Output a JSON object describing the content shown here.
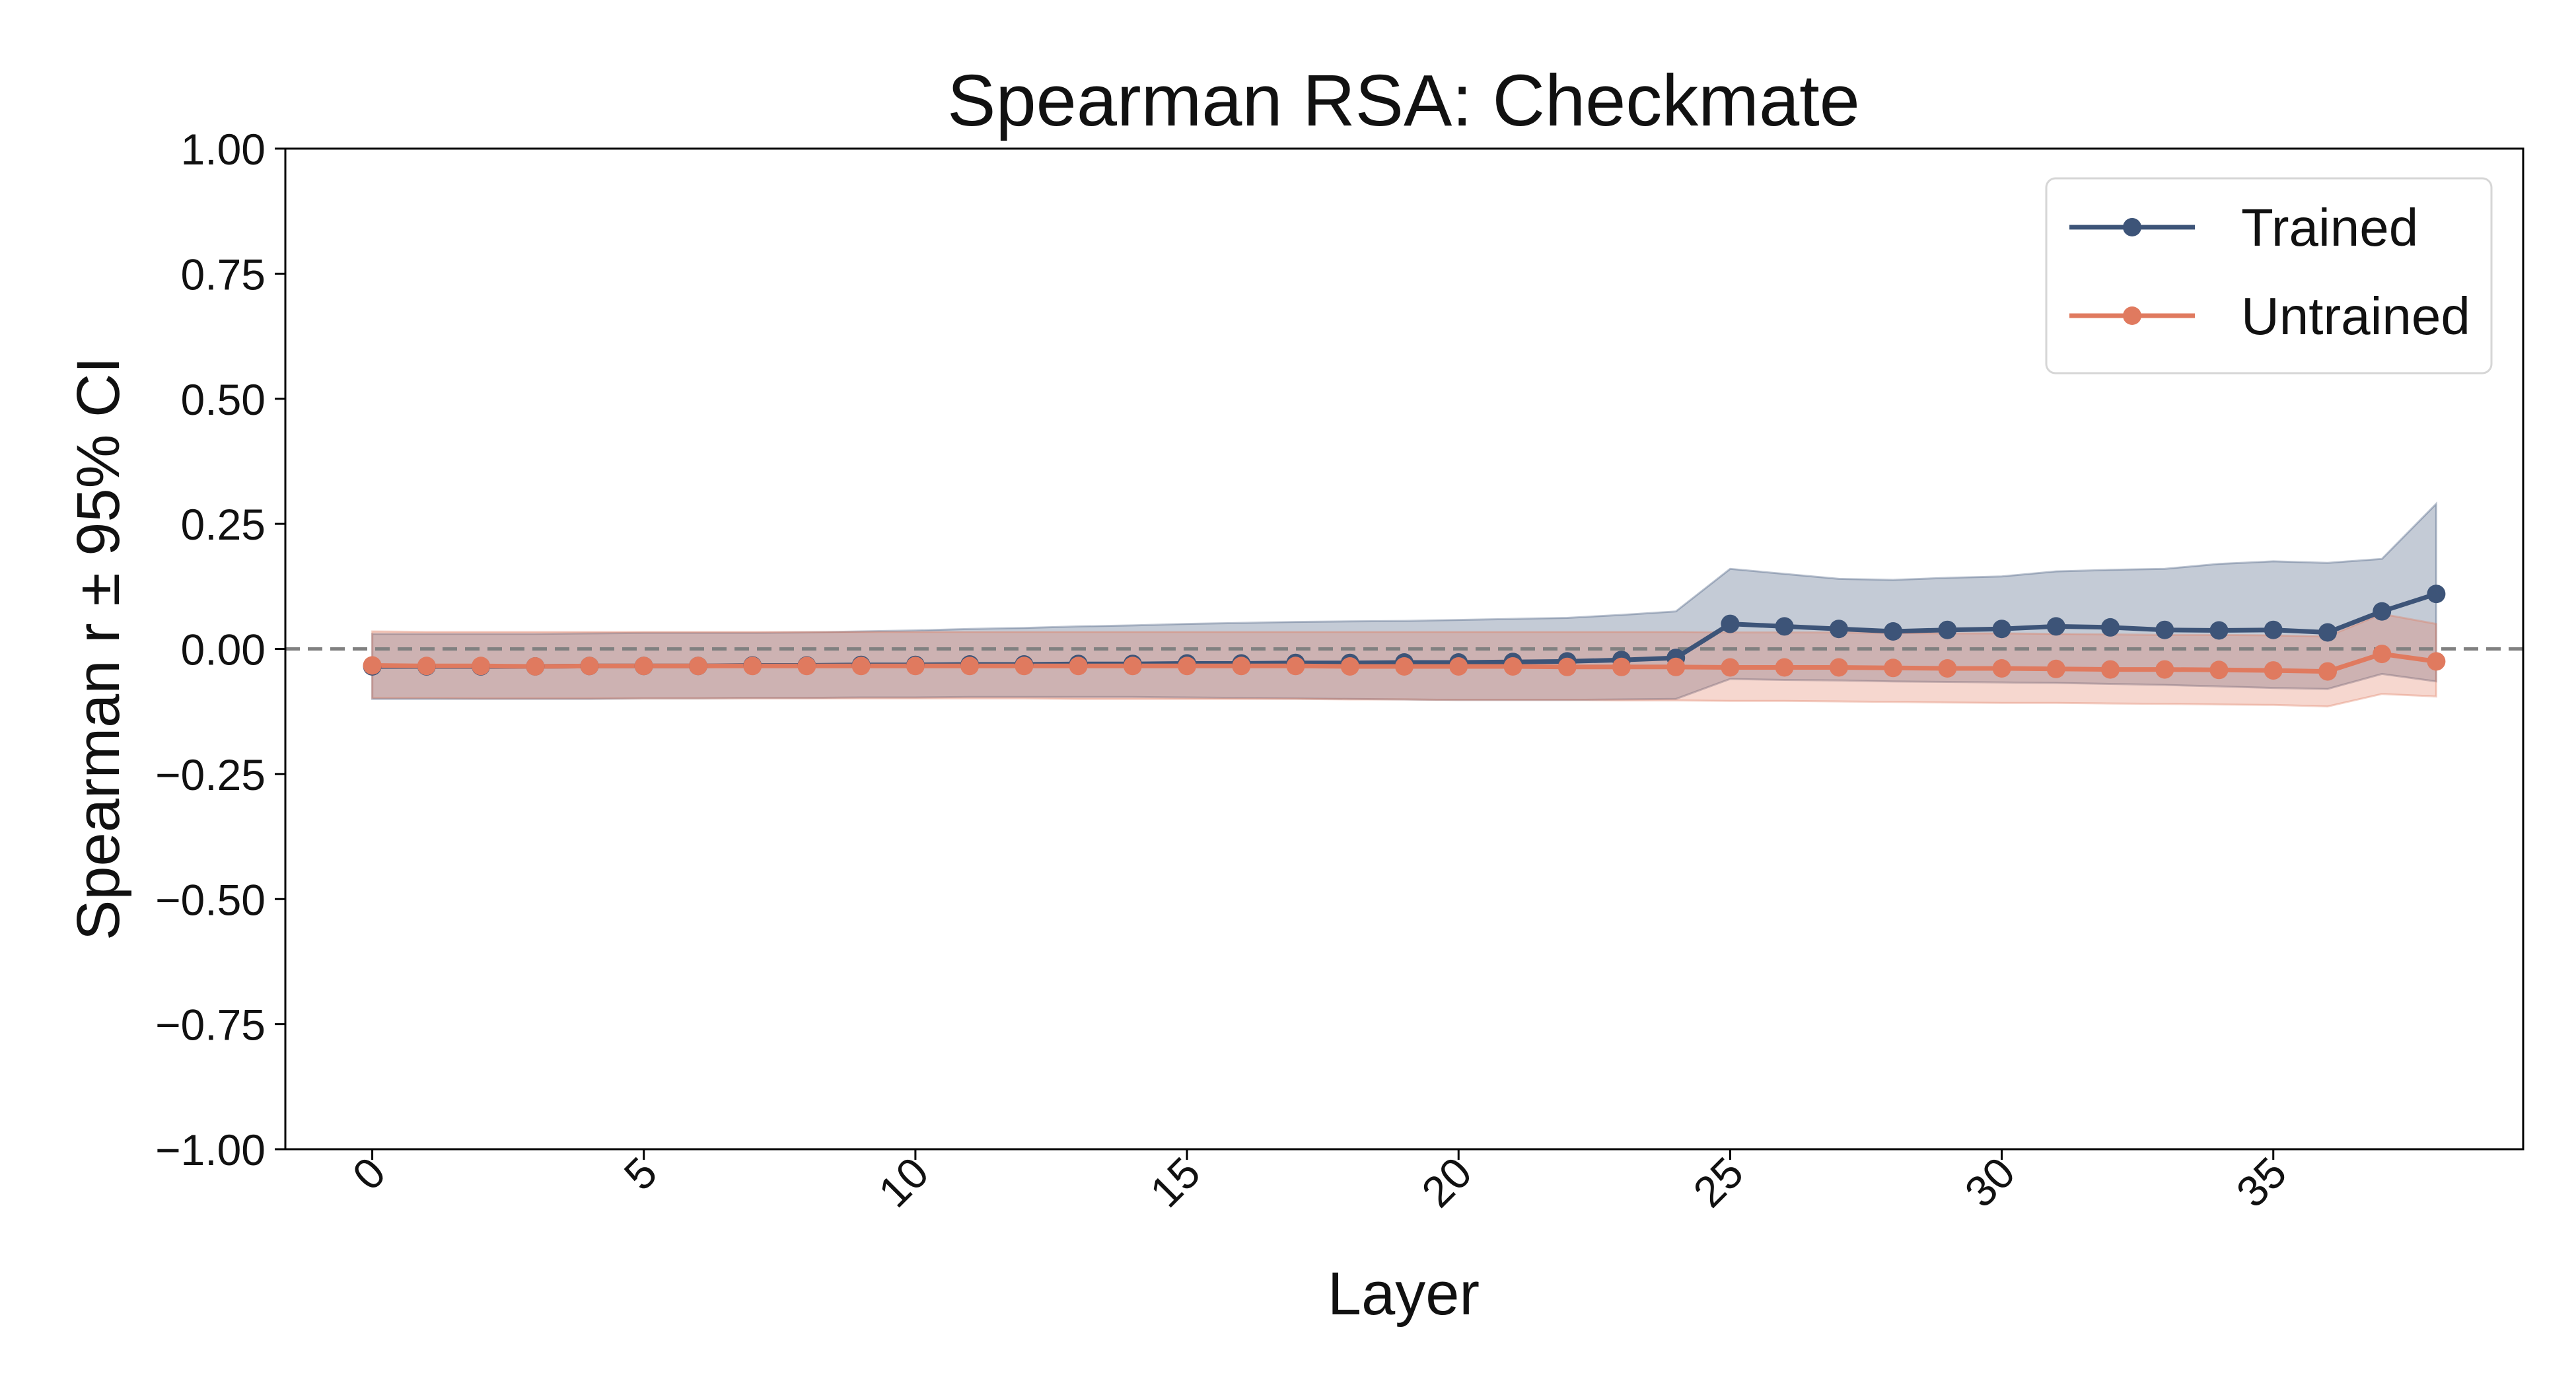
{
  "chart_data": {
    "type": "line",
    "title": "Spearman RSA: Checkmate",
    "xlabel": "Layer",
    "ylabel": "Spearman r ± 95% CI",
    "xlim": [
      -1.6,
      39.6
    ],
    "ylim": [
      -1.0,
      1.0
    ],
    "x_ticks": [
      0,
      5,
      10,
      15,
      20,
      25,
      30,
      35
    ],
    "y_ticks": [
      1.0,
      0.75,
      0.5,
      0.25,
      0.0,
      -0.25,
      -0.5,
      -0.75,
      -1.0
    ],
    "x_tick_labels": [
      "0",
      "5",
      "10",
      "15",
      "20",
      "25",
      "30",
      "35"
    ],
    "y_tick_labels": [
      "1.00",
      "0.75",
      "0.50",
      "0.25",
      "0.00",
      "−0.25",
      "−0.50",
      "−0.75",
      "−1.00"
    ],
    "reference_line": 0.0,
    "grid": false,
    "legend_position": "top-right",
    "x": [
      0,
      1,
      2,
      3,
      4,
      5,
      6,
      7,
      8,
      9,
      10,
      11,
      12,
      13,
      14,
      15,
      16,
      17,
      18,
      19,
      20,
      21,
      22,
      23,
      24,
      25,
      26,
      27,
      28,
      29,
      30,
      31,
      32,
      33,
      34,
      35,
      36,
      37,
      38
    ],
    "series": [
      {
        "name": "Trained",
        "color": "#3d5478",
        "values": [
          -0.035,
          -0.035,
          -0.035,
          -0.035,
          -0.034,
          -0.034,
          -0.034,
          -0.033,
          -0.033,
          -0.032,
          -0.032,
          -0.031,
          -0.031,
          -0.03,
          -0.03,
          -0.029,
          -0.029,
          -0.028,
          -0.028,
          -0.027,
          -0.027,
          -0.026,
          -0.025,
          -0.022,
          -0.018,
          0.05,
          0.045,
          0.04,
          0.035,
          0.038,
          0.04,
          0.045,
          0.043,
          0.038,
          0.037,
          0.038,
          0.033,
          0.075,
          0.11
        ],
        "ci_lower": [
          -0.1,
          -0.1,
          -0.1,
          -0.1,
          -0.1,
          -0.099,
          -0.099,
          -0.098,
          -0.098,
          -0.097,
          -0.097,
          -0.096,
          -0.096,
          -0.096,
          -0.096,
          -0.097,
          -0.098,
          -0.099,
          -0.1,
          -0.101,
          -0.102,
          -0.102,
          -0.102,
          -0.101,
          -0.1,
          -0.06,
          -0.062,
          -0.063,
          -0.065,
          -0.066,
          -0.067,
          -0.068,
          -0.07,
          -0.072,
          -0.075,
          -0.078,
          -0.08,
          -0.05,
          -0.065
        ],
        "ci_upper": [
          0.03,
          0.03,
          0.03,
          0.03,
          0.031,
          0.032,
          0.032,
          0.032,
          0.033,
          0.035,
          0.037,
          0.04,
          0.042,
          0.045,
          0.047,
          0.05,
          0.052,
          0.054,
          0.055,
          0.056,
          0.058,
          0.06,
          0.062,
          0.068,
          0.075,
          0.16,
          0.15,
          0.14,
          0.138,
          0.142,
          0.145,
          0.155,
          0.158,
          0.16,
          0.17,
          0.175,
          0.172,
          0.18,
          0.29
        ]
      },
      {
        "name": "Untrained",
        "color": "#e07a5f",
        "values": [
          -0.033,
          -0.034,
          -0.034,
          -0.035,
          -0.034,
          -0.034,
          -0.034,
          -0.034,
          -0.034,
          -0.034,
          -0.034,
          -0.034,
          -0.034,
          -0.034,
          -0.034,
          -0.034,
          -0.034,
          -0.034,
          -0.035,
          -0.035,
          -0.035,
          -0.035,
          -0.036,
          -0.036,
          -0.036,
          -0.037,
          -0.037,
          -0.037,
          -0.038,
          -0.039,
          -0.039,
          -0.04,
          -0.041,
          -0.041,
          -0.042,
          -0.043,
          -0.045,
          -0.01,
          -0.025
        ],
        "ci_lower": [
          -0.098,
          -0.098,
          -0.099,
          -0.099,
          -0.099,
          -0.099,
          -0.099,
          -0.099,
          -0.099,
          -0.099,
          -0.099,
          -0.099,
          -0.099,
          -0.1,
          -0.1,
          -0.1,
          -0.1,
          -0.1,
          -0.101,
          -0.101,
          -0.102,
          -0.102,
          -0.102,
          -0.103,
          -0.103,
          -0.104,
          -0.104,
          -0.105,
          -0.106,
          -0.107,
          -0.108,
          -0.108,
          -0.109,
          -0.11,
          -0.111,
          -0.112,
          -0.115,
          -0.09,
          -0.095
        ],
        "ci_upper": [
          0.035,
          0.034,
          0.034,
          0.034,
          0.034,
          0.034,
          0.034,
          0.034,
          0.034,
          0.034,
          0.034,
          0.034,
          0.034,
          0.034,
          0.034,
          0.034,
          0.034,
          0.034,
          0.034,
          0.034,
          0.034,
          0.034,
          0.034,
          0.034,
          0.034,
          0.033,
          0.033,
          0.033,
          0.032,
          0.031,
          0.031,
          0.03,
          0.029,
          0.028,
          0.028,
          0.027,
          0.025,
          0.07,
          0.05
        ]
      }
    ]
  }
}
